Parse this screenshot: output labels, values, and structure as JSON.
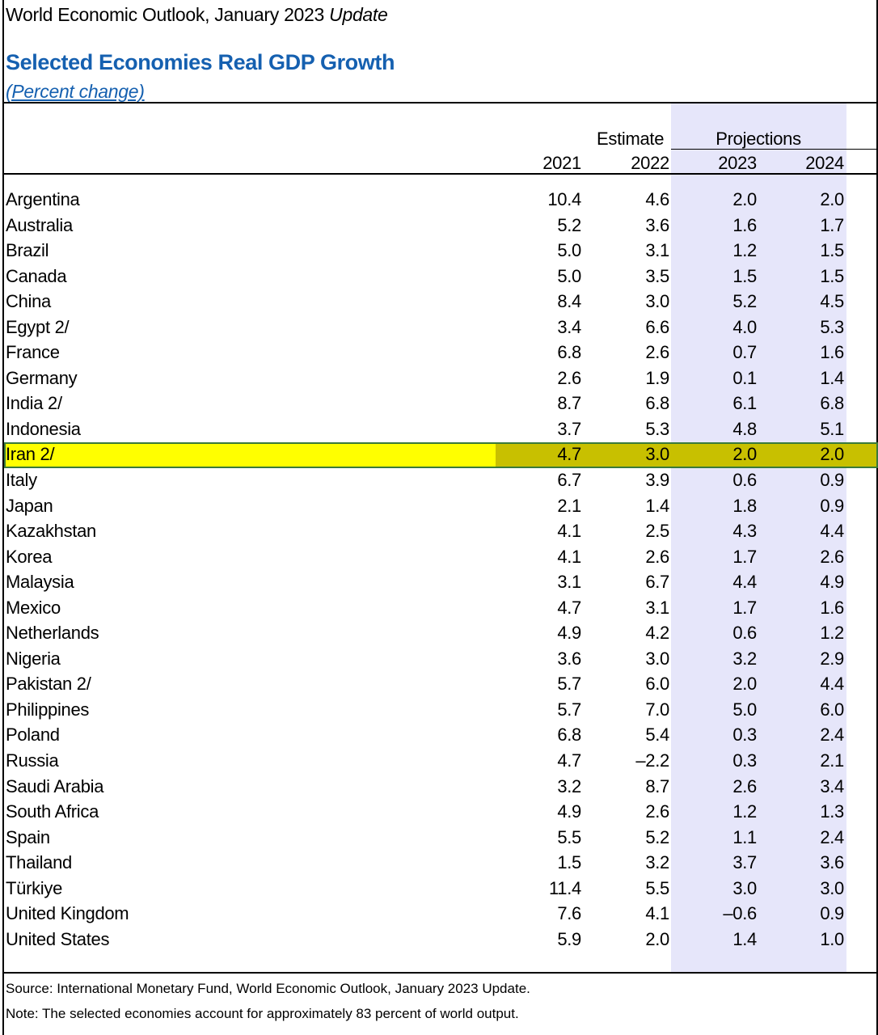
{
  "header": {
    "publication": "World Economic Outlook, January 2023",
    "publication_italic": "Update",
    "title": "Selected Economies Real GDP Growth",
    "subtitle": "(Percent change)"
  },
  "columns": {
    "estimate_label": "Estimate",
    "projections_label": "Projections",
    "years": [
      "2021",
      "2022",
      "2023",
      "2024"
    ]
  },
  "rows": [
    {
      "country": "Argentina",
      "values": [
        "10.4",
        "4.6",
        "2.0",
        "2.0"
      ]
    },
    {
      "country": "Australia",
      "values": [
        "5.2",
        "3.6",
        "1.6",
        "1.7"
      ]
    },
    {
      "country": "Brazil",
      "values": [
        "5.0",
        "3.1",
        "1.2",
        "1.5"
      ]
    },
    {
      "country": "Canada",
      "values": [
        "5.0",
        "3.5",
        "1.5",
        "1.5"
      ]
    },
    {
      "country": "China",
      "values": [
        "8.4",
        "3.0",
        "5.2",
        "4.5"
      ]
    },
    {
      "country": "Egypt 2/",
      "values": [
        "3.4",
        "6.6",
        "4.0",
        "5.3"
      ]
    },
    {
      "country": "France",
      "values": [
        "6.8",
        "2.6",
        "0.7",
        "1.6"
      ]
    },
    {
      "country": "Germany",
      "values": [
        "2.6",
        "1.9",
        "0.1",
        "1.4"
      ]
    },
    {
      "country": "India 2/",
      "values": [
        "8.7",
        "6.8",
        "6.1",
        "6.8"
      ]
    },
    {
      "country": "Indonesia",
      "values": [
        "3.7",
        "5.3",
        "4.8",
        "5.1"
      ]
    },
    {
      "country": "Iran 2/",
      "values": [
        "4.7",
        "3.0",
        "2.0",
        "2.0"
      ],
      "highlighted": true
    },
    {
      "country": "Italy",
      "values": [
        "6.7",
        "3.9",
        "0.6",
        "0.9"
      ]
    },
    {
      "country": "Japan",
      "values": [
        "2.1",
        "1.4",
        "1.8",
        "0.9"
      ]
    },
    {
      "country": "Kazakhstan",
      "values": [
        "4.1",
        "2.5",
        "4.3",
        "4.4"
      ]
    },
    {
      "country": "Korea",
      "values": [
        "4.1",
        "2.6",
        "1.7",
        "2.6"
      ]
    },
    {
      "country": "Malaysia",
      "values": [
        "3.1",
        "6.7",
        "4.4",
        "4.9"
      ]
    },
    {
      "country": "Mexico",
      "values": [
        "4.7",
        "3.1",
        "1.7",
        "1.6"
      ]
    },
    {
      "country": "Netherlands",
      "values": [
        "4.9",
        "4.2",
        "0.6",
        "1.2"
      ]
    },
    {
      "country": "Nigeria",
      "values": [
        "3.6",
        "3.0",
        "3.2",
        "2.9"
      ]
    },
    {
      "country": "Pakistan 2/",
      "values": [
        "5.7",
        "6.0",
        "2.0",
        "4.4"
      ]
    },
    {
      "country": "Philippines",
      "values": [
        "5.7",
        "7.0",
        "5.0",
        "6.0"
      ]
    },
    {
      "country": "Poland",
      "values": [
        "6.8",
        "5.4",
        "0.3",
        "2.4"
      ]
    },
    {
      "country": "Russia",
      "values": [
        "4.7",
        "–2.2",
        "0.3",
        "2.1"
      ]
    },
    {
      "country": "Saudi Arabia",
      "values": [
        "3.2",
        "8.7",
        "2.6",
        "3.4"
      ]
    },
    {
      "country": "South Africa",
      "values": [
        "4.9",
        "2.6",
        "1.2",
        "1.3"
      ]
    },
    {
      "country": "Spain",
      "values": [
        "5.5",
        "5.2",
        "1.1",
        "2.4"
      ]
    },
    {
      "country": "Thailand",
      "values": [
        "1.5",
        "3.2",
        "3.7",
        "3.6"
      ]
    },
    {
      "country": "Türkiye",
      "values": [
        "11.4",
        "5.5",
        "3.0",
        "3.0"
      ]
    },
    {
      "country": "United Kingdom",
      "values": [
        "7.6",
        "4.1",
        "–0.6",
        "0.9"
      ]
    },
    {
      "country": "United States",
      "values": [
        "5.9",
        "2.0",
        "1.4",
        "1.0"
      ]
    }
  ],
  "footer": {
    "source": "Source: International Monetary Fund, World Economic Outlook, January 2023 Update.",
    "note": "Note: The selected economies account for approximately 83 percent of world output."
  },
  "colors": {
    "title_blue": "#1560b0",
    "projection_band": "#e6e6fa",
    "highlight_yellow": "#ffff00",
    "highlight_olive": "#c8c000",
    "highlight_border": "#3a7a3a"
  }
}
